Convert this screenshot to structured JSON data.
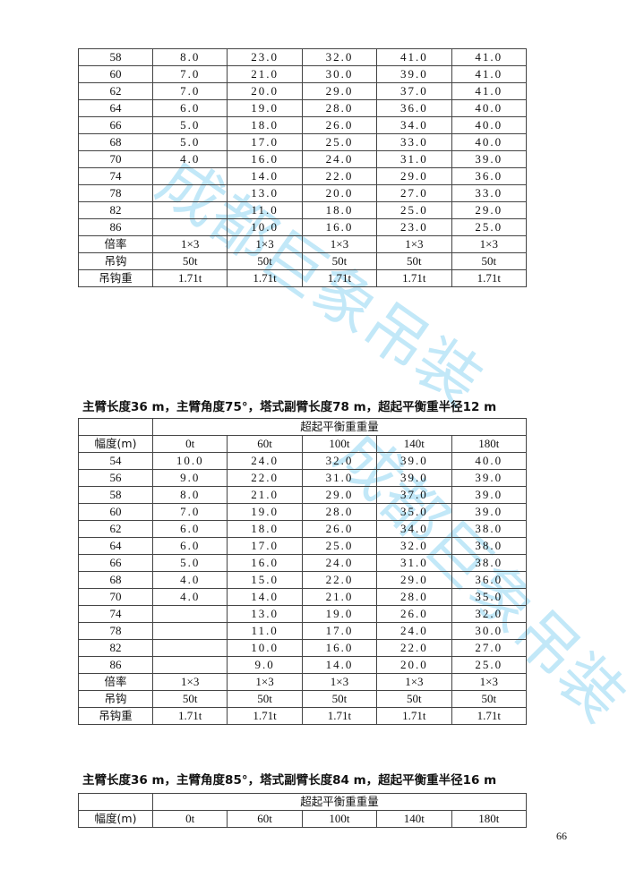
{
  "watermark": "成都巨象吊装",
  "page_number": "66",
  "table1": {
    "header": [],
    "rows": [
      [
        "58",
        "8.0",
        "23.0",
        "32.0",
        "41.0",
        "41.0"
      ],
      [
        "60",
        "7.0",
        "21.0",
        "30.0",
        "39.0",
        "41.0"
      ],
      [
        "62",
        "7.0",
        "20.0",
        "29.0",
        "37.0",
        "41.0"
      ],
      [
        "64",
        "6.0",
        "19.0",
        "28.0",
        "36.0",
        "40.0"
      ],
      [
        "66",
        "5.0",
        "18.0",
        "26.0",
        "34.0",
        "40.0"
      ],
      [
        "68",
        "5.0",
        "17.0",
        "25.0",
        "33.0",
        "40.0"
      ],
      [
        "70",
        "4.0",
        "16.0",
        "24.0",
        "31.0",
        "39.0"
      ],
      [
        "74",
        "",
        "14.0",
        "22.0",
        "29.0",
        "36.0"
      ],
      [
        "78",
        "",
        "13.0",
        "20.0",
        "27.0",
        "33.0"
      ],
      [
        "82",
        "",
        "11.0",
        "18.0",
        "25.0",
        "29.0"
      ],
      [
        "86",
        "",
        "10.0",
        "16.0",
        "23.0",
        "25.0"
      ],
      [
        "倍率",
        "1×3",
        "1×3",
        "1×3",
        "1×3",
        "1×3"
      ],
      [
        "吊钩",
        "50t",
        "50t",
        "50t",
        "50t",
        "50t"
      ],
      [
        "吊钩重",
        "1.71t",
        "1.71t",
        "1.71t",
        "1.71t",
        "1.71t"
      ]
    ]
  },
  "table2": {
    "title": "主臂长度36 m，主臂角度75°，塔式副臂长度78 m，超起平衡重半径12 m",
    "group_header": "超起平衡重重量",
    "header": [
      "幅度(m)",
      "0t",
      "60t",
      "100t",
      "140t",
      "180t"
    ],
    "rows": [
      [
        "54",
        "10.0",
        "24.0",
        "32.0",
        "39.0",
        "40.0"
      ],
      [
        "56",
        "9.0",
        "22.0",
        "31.0",
        "39.0",
        "39.0"
      ],
      [
        "58",
        "8.0",
        "21.0",
        "29.0",
        "37.0",
        "39.0"
      ],
      [
        "60",
        "7.0",
        "19.0",
        "28.0",
        "35.0",
        "39.0"
      ],
      [
        "62",
        "6.0",
        "18.0",
        "26.0",
        "34.0",
        "38.0"
      ],
      [
        "64",
        "6.0",
        "17.0",
        "25.0",
        "32.0",
        "38.0"
      ],
      [
        "66",
        "5.0",
        "16.0",
        "24.0",
        "31.0",
        "38.0"
      ],
      [
        "68",
        "4.0",
        "15.0",
        "22.0",
        "29.0",
        "36.0"
      ],
      [
        "70",
        "4.0",
        "14.0",
        "21.0",
        "28.0",
        "35.0"
      ],
      [
        "74",
        "",
        "13.0",
        "19.0",
        "26.0",
        "32.0"
      ],
      [
        "78",
        "",
        "11.0",
        "17.0",
        "24.0",
        "30.0"
      ],
      [
        "82",
        "",
        "10.0",
        "16.0",
        "22.0",
        "27.0"
      ],
      [
        "86",
        "",
        "9.0",
        "14.0",
        "20.0",
        "25.0"
      ],
      [
        "倍率",
        "1×3",
        "1×3",
        "1×3",
        "1×3",
        "1×3"
      ],
      [
        "吊钩",
        "50t",
        "50t",
        "50t",
        "50t",
        "50t"
      ],
      [
        "吊钩重",
        "1.71t",
        "1.71t",
        "1.71t",
        "1.71t",
        "1.71t"
      ]
    ]
  },
  "table3": {
    "title": "主臂长度36 m，主臂角度85°，塔式副臂长度84 m，超起平衡重半径16 m",
    "group_header": "超起平衡重重量",
    "header": [
      "幅度(m)",
      "0t",
      "60t",
      "100t",
      "140t",
      "180t"
    ],
    "rows": []
  }
}
